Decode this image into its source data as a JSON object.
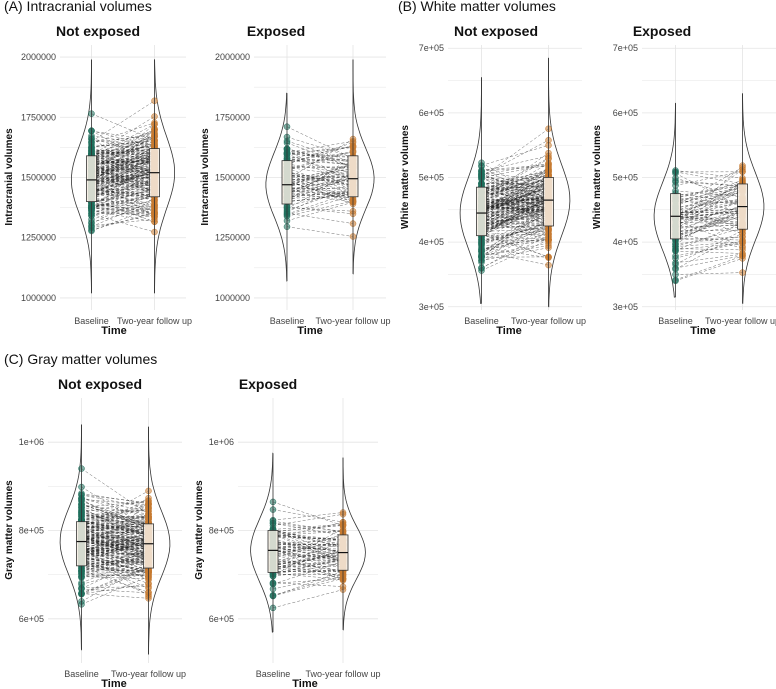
{
  "chart_data": {
    "type": "paired-violin-box",
    "sections": [
      {
        "id": "A",
        "title": "(A) Intracranial volumes",
        "ylabel": "Intracranial volumes",
        "xlabel": "Time",
        "ylim": [
          950000,
          2050000
        ],
        "yticks": [
          1000000,
          1250000,
          1500000,
          1750000,
          2000000
        ],
        "ytick_labels": [
          "1000000",
          "1250000",
          "1500000",
          "1750000",
          "2000000"
        ],
        "categories": [
          "Baseline",
          "Two-year follow up"
        ],
        "panels": [
          {
            "title": "Not exposed",
            "n_pairs": 220,
            "baseline": {
              "min": 1020000,
              "q1": 1400000,
              "median": 1490000,
              "q3": 1590000,
              "max": 1990000
            },
            "followup": {
              "min": 1020000,
              "q1": 1420000,
              "median": 1520000,
              "q3": 1620000,
              "max": 1990000
            }
          },
          {
            "title": "Exposed",
            "n_pairs": 90,
            "baseline": {
              "min": 1070000,
              "q1": 1390000,
              "median": 1470000,
              "q3": 1570000,
              "max": 1850000
            },
            "followup": {
              "min": 1100000,
              "q1": 1420000,
              "median": 1495000,
              "q3": 1590000,
              "max": 1990000
            }
          }
        ]
      },
      {
        "id": "B",
        "title": "(B) White matter volumes",
        "ylabel": "White matter volumes",
        "xlabel": "Time",
        "ylim": [
          295000,
          705000
        ],
        "yticks": [
          300000,
          400000,
          500000,
          600000,
          700000
        ],
        "ytick_labels": [
          "3e+05",
          "4e+05",
          "5e+05",
          "6e+05",
          "7e+05"
        ],
        "categories": [
          "Baseline",
          "Two-year follow up"
        ],
        "panels": [
          {
            "title": "Not exposed",
            "n_pairs": 220,
            "baseline": {
              "min": 305000,
              "q1": 410000,
              "median": 445000,
              "q3": 485000,
              "max": 655000
            },
            "followup": {
              "min": 300000,
              "q1": 425000,
              "median": 465000,
              "q3": 500000,
              "max": 685000
            }
          },
          {
            "title": "Exposed",
            "n_pairs": 90,
            "baseline": {
              "min": 315000,
              "q1": 405000,
              "median": 440000,
              "q3": 475000,
              "max": 615000
            },
            "followup": {
              "min": 305000,
              "q1": 420000,
              "median": 455000,
              "q3": 490000,
              "max": 630000
            }
          }
        ]
      },
      {
        "id": "C",
        "title": "(C) Gray matter volumes",
        "ylabel": "Gray matter volumes",
        "xlabel": "Time",
        "ylim": [
          500000,
          1100000
        ],
        "yticks": [
          600000,
          800000,
          1000000
        ],
        "ytick_labels": [
          "6e+05",
          "8e+05",
          "1e+06"
        ],
        "categories": [
          "Baseline",
          "Two-year follow up"
        ],
        "panels": [
          {
            "title": "Not exposed",
            "n_pairs": 220,
            "baseline": {
              "min": 530000,
              "q1": 720000,
              "median": 775000,
              "q3": 820000,
              "max": 1040000
            },
            "followup": {
              "min": 520000,
              "q1": 715000,
              "median": 770000,
              "q3": 815000,
              "max": 1035000
            }
          },
          {
            "title": "Exposed",
            "n_pairs": 90,
            "baseline": {
              "min": 570000,
              "q1": 705000,
              "median": 755000,
              "q3": 800000,
              "max": 975000
            },
            "followup": {
              "min": 575000,
              "q1": 710000,
              "median": 750000,
              "q3": 790000,
              "max": 965000
            }
          }
        ]
      }
    ],
    "colors": {
      "baseline": "#1f6f5c",
      "followup": "#c77a30",
      "lines": "#222222",
      "grid": "#e4e4e4"
    }
  }
}
